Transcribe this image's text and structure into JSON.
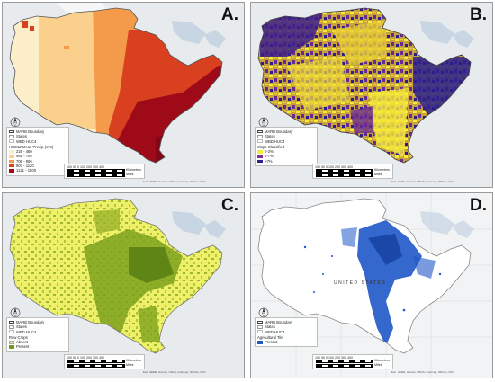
{
  "panels": [
    {
      "label": "A.",
      "legend": {
        "items": [
          "MARB Boundary",
          "States",
          "WBD HUC4"
        ],
        "title": "HUC12 Mean Precip (mm)",
        "classes": [
          "228 - 460",
          "461 - 705",
          "706 - 906",
          "907 - 1120",
          "1121 - 1500"
        ],
        "colors": [
          "#fbeec8",
          "#fad08c",
          "#f39b4b",
          "#d8401f",
          "#9e0a18"
        ]
      }
    },
    {
      "label": "B.",
      "legend": {
        "items": [
          "MARB Boundary",
          "States",
          "WBD HUC4"
        ],
        "title": "Slope Classified",
        "classes": [
          "0-2%",
          "2-7%",
          ">7%"
        ],
        "colors": [
          "#f7ec3a",
          "#8a2894",
          "#2a1f8e"
        ]
      }
    },
    {
      "label": "C.",
      "legend": {
        "items": [
          "MARB Boundary",
          "States",
          "WBD HUC4"
        ],
        "title": "Row Crops",
        "classes": [
          "Absent",
          "Present"
        ],
        "colors": [
          "#f4f37a",
          "#6f9a1b"
        ]
      }
    },
    {
      "label": "D.",
      "legend": {
        "items": [
          "MARB Boundary",
          "States",
          "WBD HUC4"
        ],
        "title": "Agricultural Tile",
        "classes": [
          "Present"
        ],
        "colors": [
          "#1f58c8"
        ]
      },
      "map_label": "UNITED STATES"
    }
  ],
  "scalebar": {
    "ticks": "100 50 0   100 200 300 400",
    "unit_km": "Kilometers",
    "unit_mi": "Miles"
  },
  "credit": "Esri, HERE, Garmin, USGS, Intermap, NRCan, FAO"
}
